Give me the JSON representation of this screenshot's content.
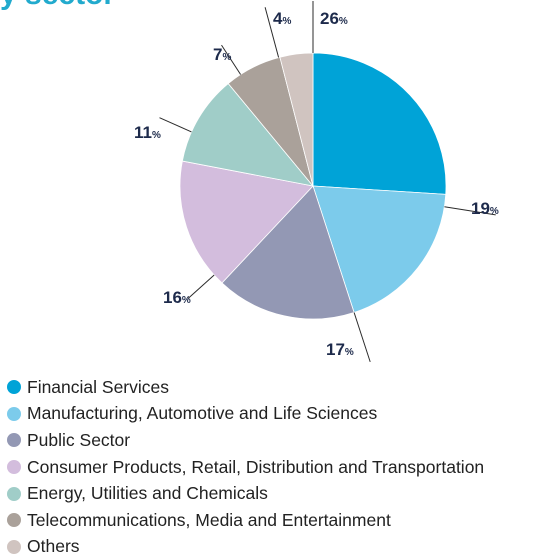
{
  "chart_data": {
    "type": "pie",
    "title": "y sector",
    "unit": "%",
    "legend_position": "bottom",
    "categories": [
      "Financial Services",
      "Manufacturing, Automotive and Life Sciences",
      "Public Sector",
      "Consumer Products, Retail, Distribution and Transportation",
      "Energy, Utilities and Chemicals",
      "Telecommunications, Media and Entertainment",
      "Others"
    ],
    "values": [
      26,
      19,
      17,
      16,
      11,
      7,
      4
    ],
    "colors": [
      "#00a3d7",
      "#7ccbeb",
      "#9398b4",
      "#d3bddd",
      "#a0cdc8",
      "#aaa19a",
      "#d0c4c0"
    ]
  }
}
